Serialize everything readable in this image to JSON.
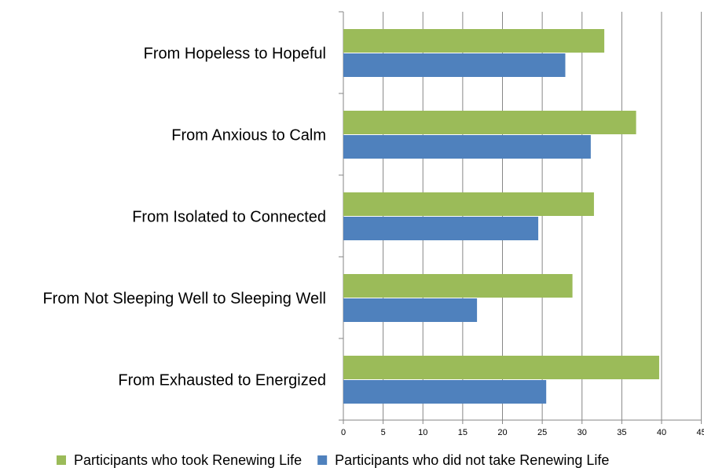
{
  "chart_data": {
    "type": "hbar",
    "categories": [
      "From Hopeless to Hopeful",
      "From Anxious to Calm",
      "From Isolated to Connected",
      "From Not Sleeping Well to Sleeping Well",
      "From Exhausted to Energized"
    ],
    "series": [
      {
        "name": "Participants who took Renewing Life",
        "color": "#9bbb59",
        "values": [
          32.8,
          36.8,
          31.5,
          28.8,
          39.7
        ]
      },
      {
        "name": "Participants who did not take Renewing Life",
        "color": "#4f81bd",
        "values": [
          27.9,
          31.1,
          24.5,
          16.8,
          25.5
        ]
      }
    ],
    "xlim": [
      0,
      45
    ],
    "xticks": [
      0,
      5,
      10,
      15,
      20,
      25,
      30,
      35,
      40,
      45
    ],
    "grid": true,
    "legend": "bottom"
  }
}
